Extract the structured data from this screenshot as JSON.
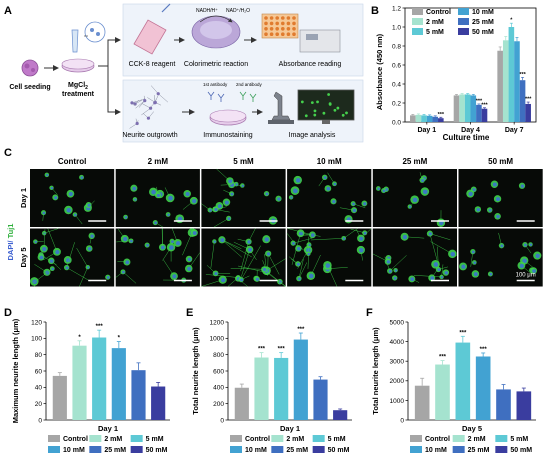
{
  "panel_labels": {
    "a": "A",
    "b": "B",
    "c": "C",
    "d": "D",
    "e": "E",
    "f": "F"
  },
  "colors": {
    "control": "#a6a6a6",
    "c2": "#a5e3cf",
    "c5": "#5dc9d5",
    "c10": "#42a2d2",
    "c25": "#3f6fc0",
    "c50": "#3a3d9f",
    "cell_green": "#3fd14b",
    "nucleus_blue": "#3b6fd6",
    "scale_bar": "#ffffff"
  },
  "workflow": {
    "cell_seeding": "Cell seeding",
    "mgcl2_line1": "MgCl",
    "mgcl2_sub": "2",
    "mgcl2_line2": "treatment",
    "cck8": "CCK-8 reagent",
    "colorimetric": "Colorimetric reaction",
    "absorbance": "Absorbance reading",
    "nadh": "NADH/H⁺",
    "nad": "NAD⁺/H₂O",
    "first_ab": "1st antibody",
    "second_ab": "2nd antibody",
    "neurite": "Neurite outgrowth",
    "immuno": "Immunostaining",
    "image": "Image analysis"
  },
  "micro": {
    "columns": [
      "Control",
      "2 mM",
      "5 mM",
      "10 mM",
      "25 mM",
      "50 mM"
    ],
    "rows": [
      "Day 1",
      "Day 5"
    ],
    "stain_dapi": "DAPI/",
    "stain_tuj": " Tuj1",
    "scale": "100 μm"
  },
  "chart_data": [
    {
      "id": "B",
      "type": "bar",
      "ylabel": "Absorbance (450 nm)",
      "xlabel": "Culture time",
      "ylim": [
        0,
        1.2
      ],
      "yticks": [
        0.0,
        0.2,
        0.4,
        0.6,
        0.8,
        1.0,
        1.2
      ],
      "tick_labels": [
        "0.0",
        "0.2",
        "0.4",
        "0.6",
        "0.8",
        "1.0",
        "1.2"
      ],
      "categories": [
        "Day 1",
        "Day 4",
        "Day 7"
      ],
      "legend_position": "top-left",
      "series": [
        {
          "name": "Control",
          "color": "#a6a6a6",
          "values": [
            0.07,
            0.28,
            0.75
          ],
          "errors": [
            0.01,
            0.01,
            0.04
          ],
          "sig": [
            "",
            "",
            ""
          ]
        },
        {
          "name": "2 mM",
          "color": "#a5e3cf",
          "values": [
            0.075,
            0.29,
            0.86
          ],
          "errors": [
            0.01,
            0.01,
            0.04
          ],
          "sig": [
            "",
            "",
            ""
          ]
        },
        {
          "name": "5 mM",
          "color": "#5dc9d5",
          "values": [
            0.07,
            0.29,
            1.0
          ],
          "errors": [
            0.01,
            0.01,
            0.04
          ],
          "sig": [
            "",
            "",
            "*"
          ]
        },
        {
          "name": "10 mM",
          "color": "#42a2d2",
          "values": [
            0.065,
            0.28,
            0.85
          ],
          "errors": [
            0.01,
            0.01,
            0.04
          ],
          "sig": [
            "",
            "",
            ""
          ]
        },
        {
          "name": "25 mM",
          "color": "#3f6fc0",
          "values": [
            0.055,
            0.18,
            0.44
          ],
          "errors": [
            0.01,
            0.01,
            0.03
          ],
          "sig": [
            "",
            "***",
            "***"
          ]
        },
        {
          "name": "50 mM",
          "color": "#3a3d9f",
          "values": [
            0.04,
            0.14,
            0.19
          ],
          "errors": [
            0.01,
            0.01,
            0.02
          ],
          "sig": [
            "***",
            "***",
            "***"
          ]
        }
      ]
    },
    {
      "id": "D",
      "type": "bar",
      "ylabel": "Maximum neurite length (μm)",
      "xlabel": "Day 1",
      "ylim": [
        0,
        120
      ],
      "yticks": [
        0,
        20,
        40,
        60,
        80,
        100,
        120
      ],
      "tick_labels": [
        "0",
        "20",
        "40",
        "60",
        "80",
        "100",
        "120"
      ],
      "categories": [
        "Control",
        "2 mM",
        "5 mM",
        "10 mM",
        "25 mM",
        "50 mM"
      ],
      "values": [
        54,
        91,
        101,
        88,
        61,
        41
      ],
      "errors": [
        4,
        6,
        9,
        8,
        9,
        5
      ],
      "sig": [
        "",
        "*",
        "***",
        "*",
        "",
        ""
      ],
      "colors": [
        "#a6a6a6",
        "#a5e3cf",
        "#5dc9d5",
        "#42a2d2",
        "#3f6fc0",
        "#3a3d9f"
      ]
    },
    {
      "id": "E",
      "type": "bar",
      "ylabel": "Total neurite length (μm)",
      "xlabel": "Day 1",
      "ylim": [
        0,
        1200
      ],
      "yticks": [
        0,
        200,
        400,
        600,
        800,
        1000,
        1200
      ],
      "tick_labels": [
        "0",
        "200",
        "400",
        "600",
        "800",
        "1000",
        "1200"
      ],
      "categories": [
        "Control",
        "2 mM",
        "5 mM",
        "10 mM",
        "25 mM",
        "50 mM"
      ],
      "values": [
        395,
        765,
        760,
        985,
        495,
        120
      ],
      "errors": [
        45,
        60,
        65,
        80,
        35,
        15
      ],
      "sig": [
        "",
        "***",
        "***",
        "***",
        "",
        ""
      ],
      "colors": [
        "#a6a6a6",
        "#a5e3cf",
        "#5dc9d5",
        "#42a2d2",
        "#3f6fc0",
        "#3a3d9f"
      ]
    },
    {
      "id": "F",
      "type": "bar",
      "ylabel": "Total neurite length (μm)",
      "xlabel": "Day 5",
      "ylim": [
        0,
        5000
      ],
      "yticks": [
        0,
        1000,
        2000,
        3000,
        4000,
        5000
      ],
      "tick_labels": [
        "0",
        "1000",
        "2000",
        "3000",
        "4000",
        "5000"
      ],
      "categories": [
        "Control",
        "2 mM",
        "5 mM",
        "10 mM",
        "25 mM",
        "50 mM"
      ],
      "values": [
        1750,
        2830,
        3950,
        3240,
        1560,
        1460
      ],
      "errors": [
        380,
        200,
        320,
        180,
        250,
        170
      ],
      "sig": [
        "",
        "***",
        "***",
        "***",
        "",
        ""
      ],
      "colors": [
        "#a6a6a6",
        "#a5e3cf",
        "#5dc9d5",
        "#42a2d2",
        "#3f6fc0",
        "#3a3d9f"
      ]
    }
  ]
}
